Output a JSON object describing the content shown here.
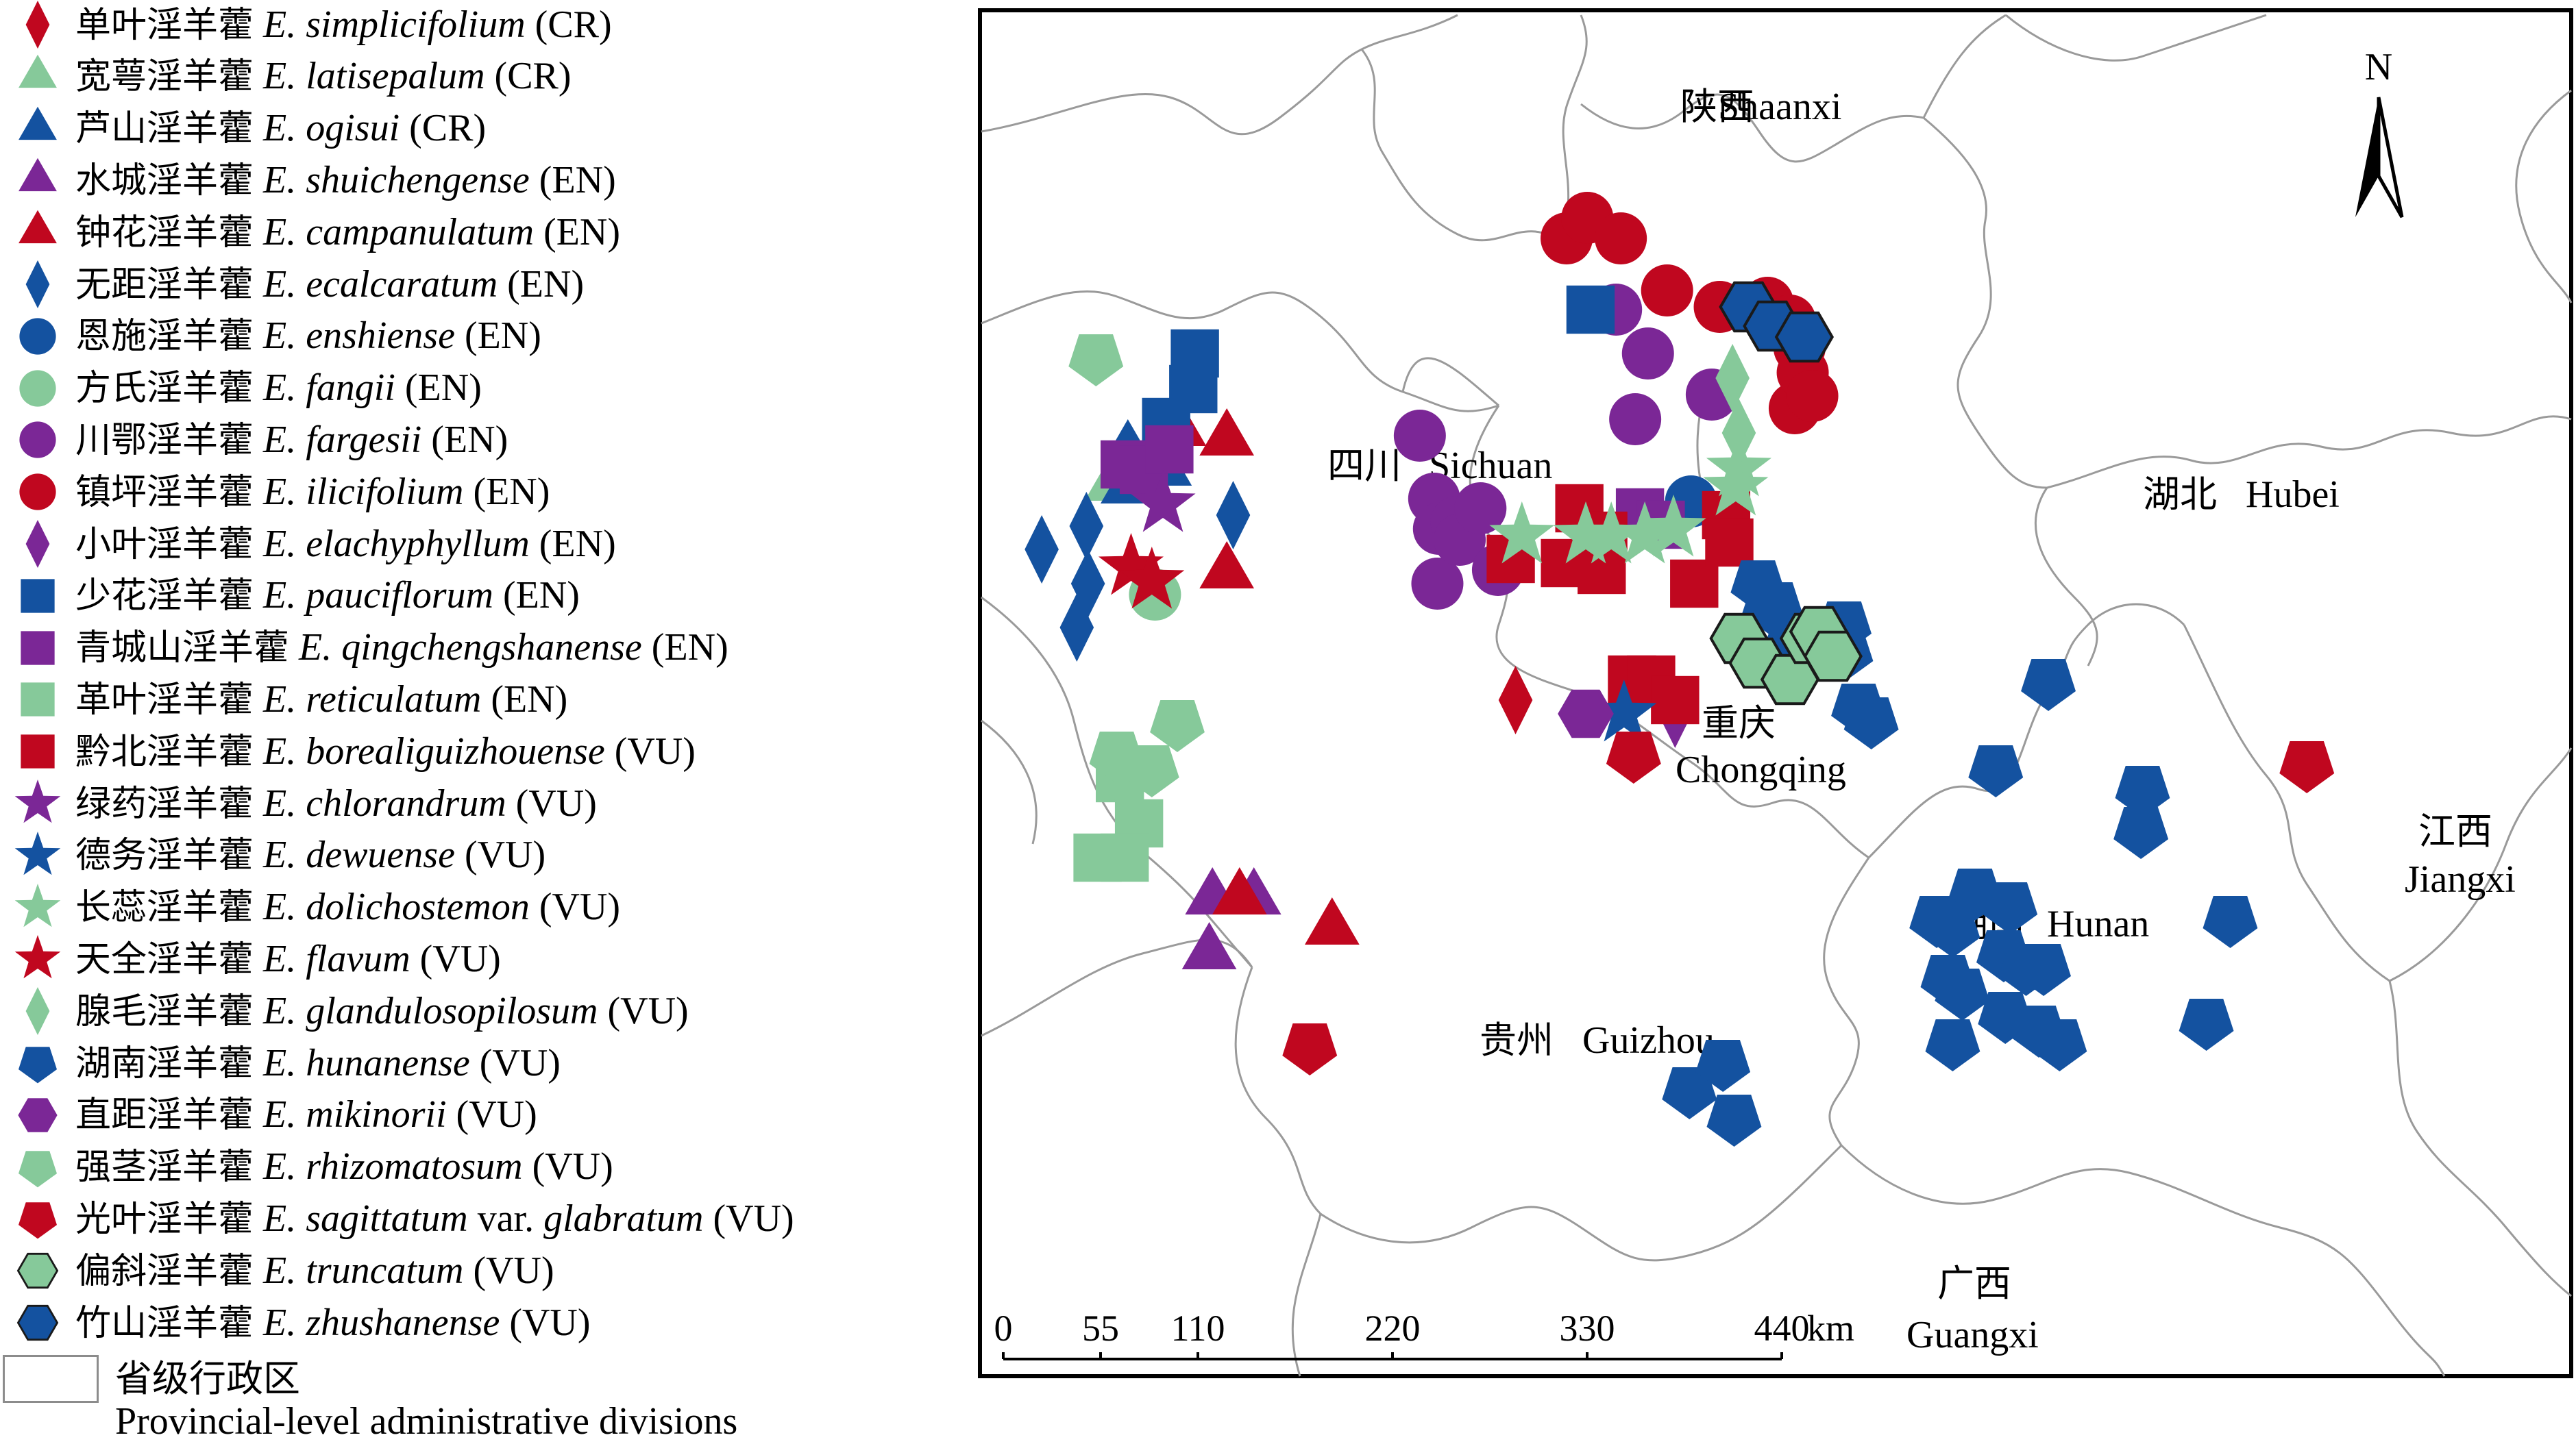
{
  "legend": {
    "items": [
      {
        "cn": "单叶淫羊藿",
        "sp": "E. simplicifolium",
        "status": "(CR)",
        "shape": "diamond",
        "color": "#c0071f",
        "edge": "none"
      },
      {
        "cn": "宽萼淫羊藿",
        "sp": "E. latisepalum",
        "status": "(CR)",
        "shape": "triangle",
        "color": "#86c99a",
        "edge": "none"
      },
      {
        "cn": "芦山淫羊藿",
        "sp": "E. ogisui",
        "status": "(CR)",
        "shape": "triangle",
        "color": "#1452a0",
        "edge": "none"
      },
      {
        "cn": "水城淫羊藿",
        "sp": "E. shuichengense",
        "status": "(EN)",
        "shape": "triangle",
        "color": "#7b2796",
        "edge": "none"
      },
      {
        "cn": "钟花淫羊藿",
        "sp": "E. campanulatum",
        "status": "(EN)",
        "shape": "triangle",
        "color": "#c0071f",
        "edge": "none"
      },
      {
        "cn": "无距淫羊藿",
        "sp": "E. ecalcaratum",
        "status": "(EN)",
        "shape": "diamond",
        "color": "#1452a0",
        "edge": "none"
      },
      {
        "cn": "恩施淫羊藿",
        "sp": "E. enshiense",
        "status": "(EN)",
        "shape": "circle",
        "color": "#1452a0",
        "edge": "none"
      },
      {
        "cn": "方氏淫羊藿",
        "sp": "E. fangii",
        "status": "(EN)",
        "shape": "circle",
        "color": "#86c99a",
        "edge": "none"
      },
      {
        "cn": "川鄂淫羊藿",
        "sp": "E. fargesii",
        "status": "(EN)",
        "shape": "circle",
        "color": "#7b2796",
        "edge": "none"
      },
      {
        "cn": "镇坪淫羊藿",
        "sp": "E. ilicifolium",
        "status": "(EN)",
        "shape": "circle",
        "color": "#c0071f",
        "edge": "none"
      },
      {
        "cn": "小叶淫羊藿",
        "sp": "E. elachyphyllum",
        "status": "(EN)",
        "shape": "diamond",
        "color": "#7b2796",
        "edge": "none"
      },
      {
        "cn": "少花淫羊藿",
        "sp": "E. pauciflorum",
        "status": "(EN)",
        "shape": "square",
        "color": "#1452a0",
        "edge": "none"
      },
      {
        "cn": "青城山淫羊藿",
        "sp": "E. qingchengshanense",
        "status": "(EN)",
        "shape": "square",
        "color": "#7b2796",
        "edge": "none"
      },
      {
        "cn": "革叶淫羊藿",
        "sp": "E. reticulatum",
        "status": "(EN)",
        "shape": "square",
        "color": "#86c99a",
        "edge": "none"
      },
      {
        "cn": "黔北淫羊藿",
        "sp": "E. borealiguizhouense",
        "status": "(VU)",
        "shape": "square",
        "color": "#c0071f",
        "edge": "none"
      },
      {
        "cn": "绿药淫羊藿",
        "sp": "E. chlorandrum",
        "status": "(VU)",
        "shape": "star",
        "color": "#7b2796",
        "edge": "none"
      },
      {
        "cn": "德务淫羊藿",
        "sp": "E. dewuense",
        "status": "(VU)",
        "shape": "star",
        "color": "#1452a0",
        "edge": "none"
      },
      {
        "cn": "长蕊淫羊藿",
        "sp": "E. dolichostemon",
        "status": "(VU)",
        "shape": "star",
        "color": "#86c99a",
        "edge": "none"
      },
      {
        "cn": "天全淫羊藿",
        "sp": "E. flavum",
        "status": "(VU)",
        "shape": "star",
        "color": "#c0071f",
        "edge": "none"
      },
      {
        "cn": "腺毛淫羊藿",
        "sp": "E. glandulosopilosum",
        "status": "(VU)",
        "shape": "diamond",
        "color": "#86c99a",
        "edge": "none"
      },
      {
        "cn": "湖南淫羊藿",
        "sp": "E. hunanense",
        "status": "(VU)",
        "shape": "pentagon",
        "color": "#1452a0",
        "edge": "none"
      },
      {
        "cn": "直距淫羊藿",
        "sp": "E. mikinorii",
        "status": "(VU)",
        "shape": "hexagon",
        "color": "#7b2796",
        "edge": "none"
      },
      {
        "cn": "强茎淫羊藿",
        "sp": "E. rhizomatosum",
        "status": "(VU)",
        "shape": "pentagon",
        "color": "#86c99a",
        "edge": "none"
      },
      {
        "cn": "光叶淫羊藿",
        "sp": "E. sagittatum",
        "status": "(VU)",
        "var": "var.",
        "sp2": "glabratum",
        "shape": "pentagon",
        "color": "#c0071f",
        "edge": "none"
      },
      {
        "cn": "偏斜淫羊藿",
        "sp": "E. truncatum",
        "status": "(VU)",
        "shape": "hexagon",
        "color": "#86c99a",
        "edge": "dark"
      },
      {
        "cn": "竹山淫羊藿",
        "sp": "E. zhushanense",
        "status": "(VU)",
        "shape": "hexagon",
        "color": "#1452a0",
        "edge": "dark"
      }
    ],
    "admin_cn": "省级行政区",
    "admin_en": "Provincial-level administrative divisions"
  },
  "map": {
    "provinces": [
      {
        "cn": "陕西",
        "en": "Shaanxi"
      },
      {
        "cn": "四川",
        "en": "Sichuan"
      },
      {
        "cn": "湖北",
        "en": "Hubei"
      },
      {
        "cn": "重庆",
        "en": "Chongqing"
      },
      {
        "cn": "湖南",
        "en": "Hunan"
      },
      {
        "cn": "江西",
        "en": "Jiangxi"
      },
      {
        "cn": "贵州",
        "en": "Guizhou"
      },
      {
        "cn": "广西",
        "en": "Guangxi"
      }
    ],
    "north_label": "N",
    "scale": {
      "ticks": [
        "0",
        "55",
        "110",
        "220",
        "330",
        "440"
      ],
      "unit": "km"
    },
    "colors": {
      "border": "#9a9a9a",
      "frame": "#000000"
    }
  },
  "occurrences": [
    {
      "sp": "E. simplicifolium",
      "pts": [
        [
          0.337,
          0.505
        ]
      ]
    },
    {
      "sp": "E. latisepalum",
      "pts": [
        [
          0.096,
          0.335
        ],
        [
          0.084,
          0.348
        ]
      ]
    },
    {
      "sp": "E. ogisui",
      "pts": [
        [
          0.094,
          0.323
        ],
        [
          0.094,
          0.35
        ],
        [
          0.117,
          0.337
        ]
      ]
    },
    {
      "sp": "E. shuichengense",
      "pts": [
        [
          0.147,
          0.65
        ],
        [
          0.173,
          0.65
        ],
        [
          0.145,
          0.69
        ]
      ]
    },
    {
      "sp": "E. campanulatum",
      "pts": [
        [
          0.126,
          0.308
        ],
        [
          0.156,
          0.315
        ],
        [
          0.156,
          0.412
        ],
        [
          0.164,
          0.65
        ],
        [
          0.222,
          0.672
        ]
      ]
    },
    {
      "sp": "E. ecalcaratum",
      "pts": [
        [
          0.04,
          0.395
        ],
        [
          0.068,
          0.378
        ],
        [
          0.069,
          0.42
        ],
        [
          0.062,
          0.452
        ],
        [
          0.16,
          0.37
        ]
      ]
    },
    {
      "sp": "E. enshiense",
      "pts": [
        [
          0.447,
          0.36
        ]
      ]
    },
    {
      "sp": "E. fangii",
      "pts": [
        [
          0.111,
          0.428
        ]
      ]
    },
    {
      "sp": "E. fargesii",
      "pts": [
        [
          0.277,
          0.312
        ],
        [
          0.286,
          0.358
        ],
        [
          0.289,
          0.38
        ],
        [
          0.288,
          0.42
        ],
        [
          0.3,
          0.375
        ],
        [
          0.302,
          0.388
        ],
        [
          0.315,
          0.365
        ],
        [
          0.326,
          0.41
        ],
        [
          0.4,
          0.22
        ],
        [
          0.412,
          0.3
        ],
        [
          0.42,
          0.252
        ],
        [
          0.46,
          0.282
        ]
      ]
    },
    {
      "sp": "E. ilicifolium",
      "pts": [
        [
          0.369,
          0.168
        ],
        [
          0.382,
          0.153
        ],
        [
          0.403,
          0.168
        ],
        [
          0.432,
          0.206
        ],
        [
          0.465,
          0.218
        ],
        [
          0.495,
          0.215
        ],
        [
          0.509,
          0.228
        ],
        [
          0.512,
          0.292
        ],
        [
          0.515,
          0.248
        ],
        [
          0.517,
          0.266
        ],
        [
          0.523,
          0.283
        ]
      ]
    },
    {
      "sp": "E. elachyphyllum",
      "pts": [
        [
          0.437,
          0.515
        ]
      ]
    },
    {
      "sp": "E. pauciflorum",
      "pts": [
        [
          0.118,
          0.302
        ],
        [
          0.135,
          0.278
        ],
        [
          0.136,
          0.252
        ],
        [
          0.384,
          0.22
        ]
      ]
    },
    {
      "sp": "E. qingchengshanense",
      "pts": [
        [
          0.092,
          0.333
        ],
        [
          0.104,
          0.337
        ],
        [
          0.12,
          0.322
        ],
        [
          0.415,
          0.368
        ],
        [
          0.428,
          0.377
        ]
      ]
    },
    {
      "sp": "E. reticulatum",
      "pts": [
        [
          0.089,
          0.562
        ],
        [
          0.101,
          0.595
        ],
        [
          0.075,
          0.62
        ],
        [
          0.092,
          0.62
        ]
      ]
    },
    {
      "sp": "E. borealiguizhouense",
      "pts": [
        [
          0.334,
          0.402
        ],
        [
          0.368,
          0.405
        ],
        [
          0.391,
          0.41
        ],
        [
          0.377,
          0.365
        ],
        [
          0.392,
          0.385
        ],
        [
          0.449,
          0.42
        ],
        [
          0.469,
          0.37
        ],
        [
          0.471,
          0.39
        ],
        [
          0.41,
          0.49
        ],
        [
          0.422,
          0.49
        ],
        [
          0.437,
          0.505
        ]
      ]
    },
    {
      "sp": "E. chlorandrum",
      "pts": [
        [
          0.116,
          0.362
        ]
      ]
    },
    {
      "sp": "E. dewuense",
      "pts": [
        [
          0.405,
          0.515
        ]
      ]
    },
    {
      "sp": "E. dolichostemon",
      "pts": [
        [
          0.341,
          0.385
        ],
        [
          0.381,
          0.385
        ],
        [
          0.397,
          0.385
        ],
        [
          0.418,
          0.385
        ],
        [
          0.436,
          0.38
        ],
        [
          0.477,
          0.336
        ],
        [
          0.475,
          0.35
        ]
      ]
    },
    {
      "sp": "E. flavum",
      "pts": [
        [
          0.096,
          0.408
        ],
        [
          0.109,
          0.418
        ]
      ]
    },
    {
      "sp": "E. glandulosopilosum",
      "pts": [
        [
          0.473,
          0.27
        ],
        [
          0.477,
          0.31
        ]
      ]
    },
    {
      "sp": "E. hunanense",
      "pts": [
        [
          0.489,
          0.42
        ],
        [
          0.496,
          0.436
        ],
        [
          0.5,
          0.436
        ],
        [
          0.543,
          0.45
        ],
        [
          0.51,
          0.46
        ],
        [
          0.544,
          0.47
        ],
        [
          0.638,
          0.555
        ],
        [
          0.671,
          0.492
        ],
        [
          0.73,
          0.57
        ],
        [
          0.729,
          0.6
        ],
        [
          0.785,
          0.665
        ],
        [
          0.77,
          0.74
        ],
        [
          0.552,
          0.51
        ],
        [
          0.56,
          0.52
        ],
        [
          0.625,
          0.645
        ],
        [
          0.647,
          0.655
        ],
        [
          0.601,
          0.665
        ],
        [
          0.611,
          0.672
        ],
        [
          0.608,
          0.708
        ],
        [
          0.617,
          0.718
        ],
        [
          0.643,
          0.69
        ],
        [
          0.657,
          0.7
        ],
        [
          0.668,
          0.7
        ],
        [
          0.611,
          0.755
        ],
        [
          0.644,
          0.735
        ],
        [
          0.665,
          0.745
        ],
        [
          0.678,
          0.755
        ],
        [
          0.474,
          0.81
        ],
        [
          0.446,
          0.79
        ],
        [
          0.467,
          0.77
        ]
      ]
    },
    {
      "sp": "E. mikinorii",
      "pts": [
        [
          0.381,
          0.515
        ]
      ]
    },
    {
      "sp": "E. rhizomatosum",
      "pts": [
        [
          0.074,
          0.255
        ],
        [
          0.087,
          0.545
        ],
        [
          0.125,
          0.522
        ],
        [
          0.109,
          0.555
        ]
      ]
    },
    {
      "sp": "E. sagittatum var. glabratum",
      "pts": [
        [
          0.208,
          0.758
        ],
        [
          0.411,
          0.545
        ],
        [
          0.833,
          0.552
        ]
      ]
    },
    {
      "sp": "E. truncatum",
      "pts": [
        [
          0.477,
          0.46
        ],
        [
          0.489,
          0.478
        ],
        [
          0.509,
          0.49
        ],
        [
          0.521,
          0.46
        ],
        [
          0.527,
          0.455
        ],
        [
          0.536,
          0.473
        ]
      ]
    },
    {
      "sp": "E. zhushanense",
      "pts": [
        [
          0.483,
          0.218
        ],
        [
          0.498,
          0.232
        ],
        [
          0.518,
          0.24
        ]
      ]
    }
  ]
}
